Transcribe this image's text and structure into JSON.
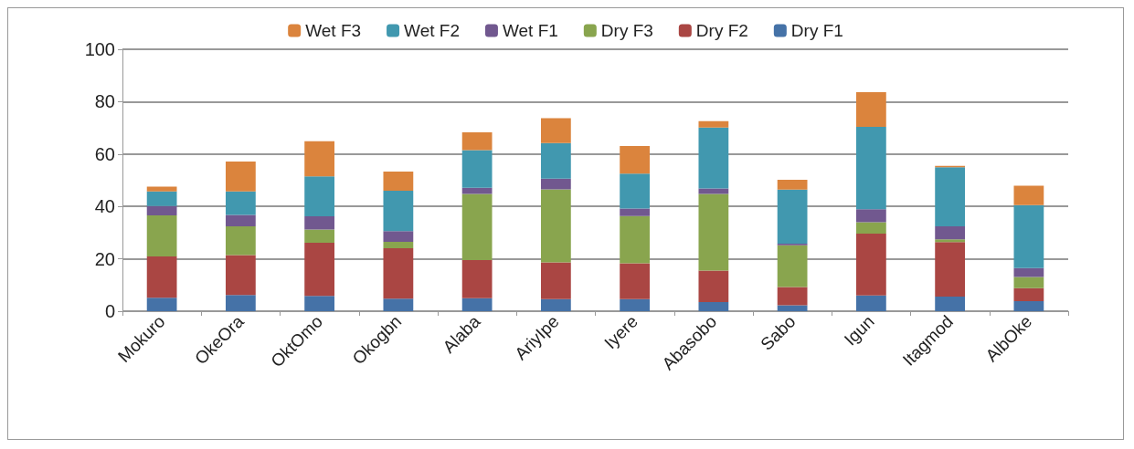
{
  "chart_data": {
    "type": "bar",
    "stacked": true,
    "categories": [
      "Mokuro",
      "OkeOra",
      "OktOmo",
      "Okogbn",
      "Alaba",
      "AriyIpe",
      "Iyere",
      "Abasobo",
      "Sabo",
      "Igun",
      "Itagmod",
      "AlbOke"
    ],
    "series": [
      {
        "name": "Dry F1",
        "color": "#4572a7",
        "values": [
          5.1,
          6.2,
          5.8,
          4.8,
          5.0,
          4.6,
          4.6,
          3.5,
          2.3,
          6.0,
          5.6,
          3.8
        ]
      },
      {
        "name": "Dry F2",
        "color": "#aa4643",
        "values": [
          15.8,
          15.2,
          20.3,
          19.2,
          14.5,
          14.0,
          13.7,
          12.0,
          6.9,
          23.6,
          20.8,
          5.0
        ]
      },
      {
        "name": "Dry F3",
        "color": "#89a54e",
        "values": [
          15.7,
          11.0,
          5.1,
          2.5,
          25.3,
          27.9,
          18.0,
          29.3,
          16.0,
          4.4,
          1.0,
          4.3
        ]
      },
      {
        "name": "Wet F1",
        "color": "#71588f",
        "values": [
          3.6,
          4.4,
          5.0,
          4.1,
          2.3,
          4.1,
          2.9,
          2.1,
          0.6,
          4.9,
          5.0,
          3.4
        ]
      },
      {
        "name": "Wet F2",
        "color": "#4198af",
        "values": [
          5.5,
          8.9,
          15.3,
          15.4,
          14.4,
          13.6,
          13.3,
          23.2,
          20.6,
          31.5,
          22.6,
          24.0
        ]
      },
      {
        "name": "Wet F3",
        "color": "#db843d",
        "values": [
          1.9,
          11.4,
          13.4,
          7.3,
          6.8,
          9.5,
          10.6,
          2.5,
          3.8,
          13.2,
          0.5,
          7.4
        ]
      }
    ],
    "ylim": [
      0,
      100
    ],
    "yticks": [
      0,
      20,
      40,
      60,
      80,
      100
    ],
    "grid": "y",
    "legend": "top"
  }
}
